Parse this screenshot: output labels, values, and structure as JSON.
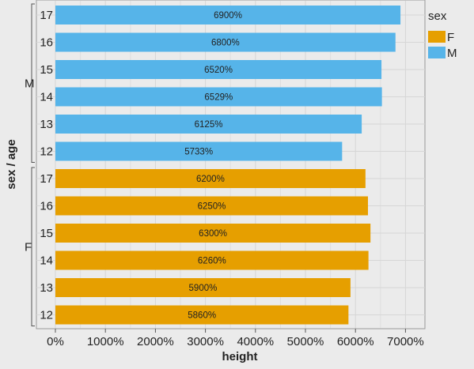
{
  "chart_data": {
    "type": "bar",
    "orientation": "horizontal",
    "xlabel": "height",
    "ylabel": "sex / age",
    "xlim": [
      0,
      7400
    ],
    "x_ticks": [
      0,
      1000,
      2000,
      3000,
      4000,
      5000,
      6000,
      7000
    ],
    "x_tick_labels": [
      "0%",
      "1000%",
      "2000%",
      "3000%",
      "4000%",
      "5000%",
      "6000%",
      "7000%"
    ],
    "groups": [
      {
        "name": "M",
        "color": "#56b4e9",
        "bars": [
          {
            "age": "17",
            "value": 6900,
            "label": "6900%"
          },
          {
            "age": "16",
            "value": 6800,
            "label": "6800%"
          },
          {
            "age": "15",
            "value": 6520,
            "label": "6520%"
          },
          {
            "age": "14",
            "value": 6529,
            "label": "6529%"
          },
          {
            "age": "13",
            "value": 6125,
            "label": "6125%"
          },
          {
            "age": "12",
            "value": 5733,
            "label": "5733%"
          }
        ]
      },
      {
        "name": "F",
        "color": "#e69f00",
        "bars": [
          {
            "age": "17",
            "value": 6200,
            "label": "6200%"
          },
          {
            "age": "16",
            "value": 6250,
            "label": "6250%"
          },
          {
            "age": "15",
            "value": 6300,
            "label": "6300%"
          },
          {
            "age": "14",
            "value": 6260,
            "label": "6260%"
          },
          {
            "age": "13",
            "value": 5900,
            "label": "5900%"
          },
          {
            "age": "12",
            "value": 5860,
            "label": "5860%"
          }
        ]
      }
    ],
    "legend": {
      "title": "sex",
      "placement": "right",
      "entries": [
        {
          "name": "F",
          "color": "#e69f00"
        },
        {
          "name": "M",
          "color": "#56b4e9"
        }
      ]
    },
    "grid": true
  }
}
